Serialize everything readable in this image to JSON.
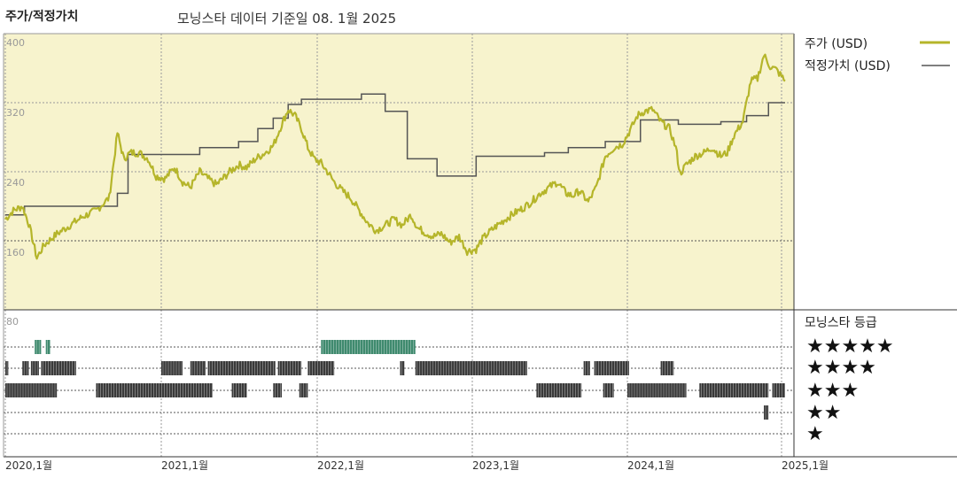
{
  "header": {
    "section_title": "주가/적정가치",
    "subtitle": "모닝스타 데이터 기준일 08. 1월 2025"
  },
  "colors": {
    "price_line": "#b5b52a",
    "fair_value_line": "#555555",
    "upper_panel_bg": "#f7f3cd",
    "rating_5_star": "#3f8a6e",
    "rating_other": "#3a3a3a"
  },
  "chart_data": {
    "type": "line",
    "title": "",
    "x_range": [
      "2020-01",
      "2025-01"
    ],
    "x_ticks": [
      "2020,1월",
      "2021,1월",
      "2022,1월",
      "2023,1월",
      "2024,1월",
      "2025,1월"
    ],
    "y_ticks": [
      400,
      320,
      240,
      160,
      80
    ],
    "ylim": [
      80,
      400
    ],
    "grid": true,
    "legend_position": "top-right",
    "series": [
      {
        "name": "주가 (USD)",
        "color": "#b5b52a",
        "points": [
          [
            "2020-01-01",
            185
          ],
          [
            "2020-01-20",
            195
          ],
          [
            "2020-02-10",
            200
          ],
          [
            "2020-02-25",
            180
          ],
          [
            "2020-03-15",
            140
          ],
          [
            "2020-04-01",
            155
          ],
          [
            "2020-05-01",
            168
          ],
          [
            "2020-06-01",
            178
          ],
          [
            "2020-07-01",
            188
          ],
          [
            "2020-08-01",
            195
          ],
          [
            "2020-09-01",
            210
          ],
          [
            "2020-09-20",
            285
          ],
          [
            "2020-10-05",
            255
          ],
          [
            "2020-10-20",
            262
          ],
          [
            "2020-11-10",
            262
          ],
          [
            "2020-12-01",
            255
          ],
          [
            "2020-12-20",
            235
          ],
          [
            "2021-01-10",
            232
          ],
          [
            "2021-02-01",
            245
          ],
          [
            "2021-02-20",
            228
          ],
          [
            "2021-03-10",
            222
          ],
          [
            "2021-04-01",
            240
          ],
          [
            "2021-04-20",
            232
          ],
          [
            "2021-05-10",
            225
          ],
          [
            "2021-05-25",
            232
          ],
          [
            "2021-06-10",
            240
          ],
          [
            "2021-07-01",
            248
          ],
          [
            "2021-07-20",
            245
          ],
          [
            "2021-08-10",
            255
          ],
          [
            "2021-09-01",
            262
          ],
          [
            "2021-09-20",
            270
          ],
          [
            "2021-10-10",
            295
          ],
          [
            "2021-10-25",
            312
          ],
          [
            "2021-11-10",
            305
          ],
          [
            "2021-11-25",
            290
          ],
          [
            "2021-12-10",
            268
          ],
          [
            "2021-12-25",
            255
          ],
          [
            "2022-01-10",
            250
          ],
          [
            "2022-01-25",
            240
          ],
          [
            "2022-02-10",
            228
          ],
          [
            "2022-03-01",
            218
          ],
          [
            "2022-03-20",
            210
          ],
          [
            "2022-04-10",
            195
          ],
          [
            "2022-05-01",
            180
          ],
          [
            "2022-05-20",
            172
          ],
          [
            "2022-06-10",
            178
          ],
          [
            "2022-07-01",
            185
          ],
          [
            "2022-07-20",
            178
          ],
          [
            "2022-08-10",
            190
          ],
          [
            "2022-08-25",
            175
          ],
          [
            "2022-09-10",
            170
          ],
          [
            "2022-10-01",
            165
          ],
          [
            "2022-10-20",
            168
          ],
          [
            "2022-11-10",
            158
          ],
          [
            "2022-12-01",
            165
          ],
          [
            "2022-12-20",
            148
          ],
          [
            "2023-01-10",
            150
          ],
          [
            "2023-01-25",
            162
          ],
          [
            "2023-02-10",
            170
          ],
          [
            "2023-03-01",
            178
          ],
          [
            "2023-03-20",
            185
          ],
          [
            "2023-04-10",
            192
          ],
          [
            "2023-05-01",
            198
          ],
          [
            "2023-05-20",
            205
          ],
          [
            "2023-06-10",
            215
          ],
          [
            "2023-07-01",
            222
          ],
          [
            "2023-07-20",
            228
          ],
          [
            "2023-08-10",
            215
          ],
          [
            "2023-08-25",
            212
          ],
          [
            "2023-09-10",
            218
          ],
          [
            "2023-10-01",
            205
          ],
          [
            "2023-10-20",
            222
          ],
          [
            "2023-11-10",
            258
          ],
          [
            "2023-12-01",
            268
          ],
          [
            "2023-12-20",
            272
          ],
          [
            "2024-01-10",
            290
          ],
          [
            "2024-01-25",
            305
          ],
          [
            "2024-02-10",
            310
          ],
          [
            "2024-03-01",
            312
          ],
          [
            "2024-03-20",
            298
          ],
          [
            "2024-04-10",
            290
          ],
          [
            "2024-04-25",
            268
          ],
          [
            "2024-05-05",
            238
          ],
          [
            "2024-05-20",
            248
          ],
          [
            "2024-06-10",
            258
          ],
          [
            "2024-07-01",
            262
          ],
          [
            "2024-07-20",
            268
          ],
          [
            "2024-08-10",
            258
          ],
          [
            "2024-08-25",
            262
          ],
          [
            "2024-09-10",
            282
          ],
          [
            "2024-10-01",
            298
          ],
          [
            "2024-10-20",
            345
          ],
          [
            "2024-11-05",
            348
          ],
          [
            "2024-11-20",
            375
          ],
          [
            "2024-12-05",
            362
          ],
          [
            "2024-12-20",
            358
          ],
          [
            "2025-01-08",
            345
          ]
        ]
      },
      {
        "name": "적정가치 (USD)",
        "color": "#555555",
        "steps": [
          [
            "2020-01-01",
            190
          ],
          [
            "2020-02-15",
            200
          ],
          [
            "2020-09-20",
            215
          ],
          [
            "2020-10-15",
            260
          ],
          [
            "2021-04-01",
            268
          ],
          [
            "2021-07-01",
            275
          ],
          [
            "2021-08-15",
            290
          ],
          [
            "2021-09-20",
            302
          ],
          [
            "2021-10-25",
            318
          ],
          [
            "2021-11-25",
            324
          ],
          [
            "2022-04-15",
            330
          ],
          [
            "2022-06-10",
            310
          ],
          [
            "2022-08-01",
            255
          ],
          [
            "2022-10-10",
            235
          ],
          [
            "2023-01-10",
            258
          ],
          [
            "2023-06-20",
            262
          ],
          [
            "2023-08-15",
            268
          ],
          [
            "2023-11-10",
            275
          ],
          [
            "2024-02-01",
            300
          ],
          [
            "2024-05-01",
            295
          ],
          [
            "2024-08-10",
            298
          ],
          [
            "2024-10-10",
            305
          ],
          [
            "2024-12-01",
            320
          ],
          [
            "2025-01-08",
            320
          ]
        ]
      }
    ],
    "rating_panel": {
      "title": "모닝스타 등급",
      "levels": [
        "★★★★★",
        "★★★★",
        "★★★",
        "★★",
        "★"
      ],
      "segments": [
        {
          "stars": 5,
          "start": "2020-03-10",
          "end": "2020-03-25"
        },
        {
          "stars": 5,
          "start": "2020-04-05",
          "end": "2020-04-15"
        },
        {
          "stars": 5,
          "start": "2022-01-10",
          "end": "2022-08-20"
        },
        {
          "stars": 4,
          "start": "2020-01-01",
          "end": "2020-01-08"
        },
        {
          "stars": 4,
          "start": "2020-02-10",
          "end": "2020-02-25"
        },
        {
          "stars": 4,
          "start": "2020-03-01",
          "end": "2020-03-20"
        },
        {
          "stars": 4,
          "start": "2020-03-25",
          "end": "2020-06-15"
        },
        {
          "stars": 4,
          "start": "2021-01-01",
          "end": "2021-02-20"
        },
        {
          "stars": 4,
          "start": "2021-03-10",
          "end": "2021-04-15"
        },
        {
          "stars": 4,
          "start": "2021-04-20",
          "end": "2021-09-25"
        },
        {
          "stars": 4,
          "start": "2021-10-01",
          "end": "2021-11-25"
        },
        {
          "stars": 4,
          "start": "2021-12-10",
          "end": "2022-02-10"
        },
        {
          "stars": 4,
          "start": "2022-07-15",
          "end": "2022-07-25"
        },
        {
          "stars": 4,
          "start": "2022-08-20",
          "end": "2023-05-10"
        },
        {
          "stars": 4,
          "start": "2023-09-20",
          "end": "2023-10-05"
        },
        {
          "stars": 4,
          "start": "2023-10-15",
          "end": "2024-01-05"
        },
        {
          "stars": 4,
          "start": "2024-03-20",
          "end": "2024-04-20"
        },
        {
          "stars": 3,
          "start": "2020-01-01",
          "end": "2020-05-01"
        },
        {
          "stars": 3,
          "start": "2020-08-01",
          "end": "2021-05-01"
        },
        {
          "stars": 3,
          "start": "2021-06-15",
          "end": "2021-07-20"
        },
        {
          "stars": 3,
          "start": "2021-09-20",
          "end": "2021-10-10"
        },
        {
          "stars": 3,
          "start": "2021-11-20",
          "end": "2021-12-10"
        },
        {
          "stars": 3,
          "start": "2023-06-01",
          "end": "2023-09-15"
        },
        {
          "stars": 3,
          "start": "2023-11-05",
          "end": "2023-11-30"
        },
        {
          "stars": 3,
          "start": "2024-01-01",
          "end": "2024-05-20"
        },
        {
          "stars": 3,
          "start": "2024-06-20",
          "end": "2024-12-01"
        },
        {
          "stars": 3,
          "start": "2024-12-10",
          "end": "2025-01-08"
        },
        {
          "stars": 2,
          "start": "2024-11-20",
          "end": "2024-12-01"
        }
      ]
    }
  }
}
